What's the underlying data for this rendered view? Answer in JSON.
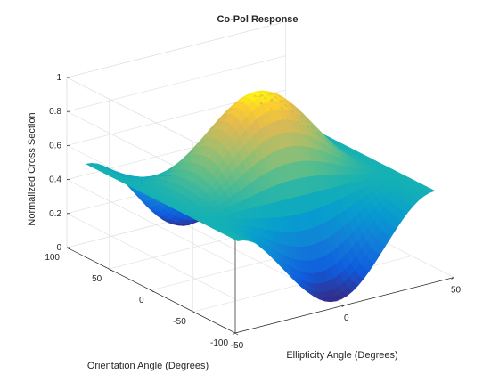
{
  "chart_data": {
    "type": "surface",
    "title": "Co-Pol Response",
    "xlabel": "Ellipticity Angle (Degrees)",
    "ylabel": "Orientation Angle (Degrees)",
    "zlabel": "Normalized Cross Section",
    "x_range": [
      -45,
      45
    ],
    "y_range": [
      -90,
      90
    ],
    "z_range": [
      0,
      1
    ],
    "x_ticks": [
      {
        "value": -50,
        "label": "-50"
      },
      {
        "value": 0,
        "label": "0"
      },
      {
        "value": 50,
        "label": "50"
      }
    ],
    "y_ticks": [
      {
        "value": -100,
        "label": "-100"
      },
      {
        "value": -50,
        "label": "-50"
      },
      {
        "value": 0,
        "label": "0"
      },
      {
        "value": 50,
        "label": "50"
      },
      {
        "value": 100,
        "label": "100"
      }
    ],
    "z_ticks": [
      {
        "value": 0,
        "label": "0"
      },
      {
        "value": 0.2,
        "label": "0.2"
      },
      {
        "value": 0.4,
        "label": "0.4"
      },
      {
        "value": 0.6,
        "label": "0.6"
      },
      {
        "value": 0.8,
        "label": "0.8"
      },
      {
        "value": 1,
        "label": "1"
      }
    ],
    "formula": "z = (1 + cos^2(2x) * cos(2y)) / 2",
    "colormap": "parula",
    "grid": true
  }
}
